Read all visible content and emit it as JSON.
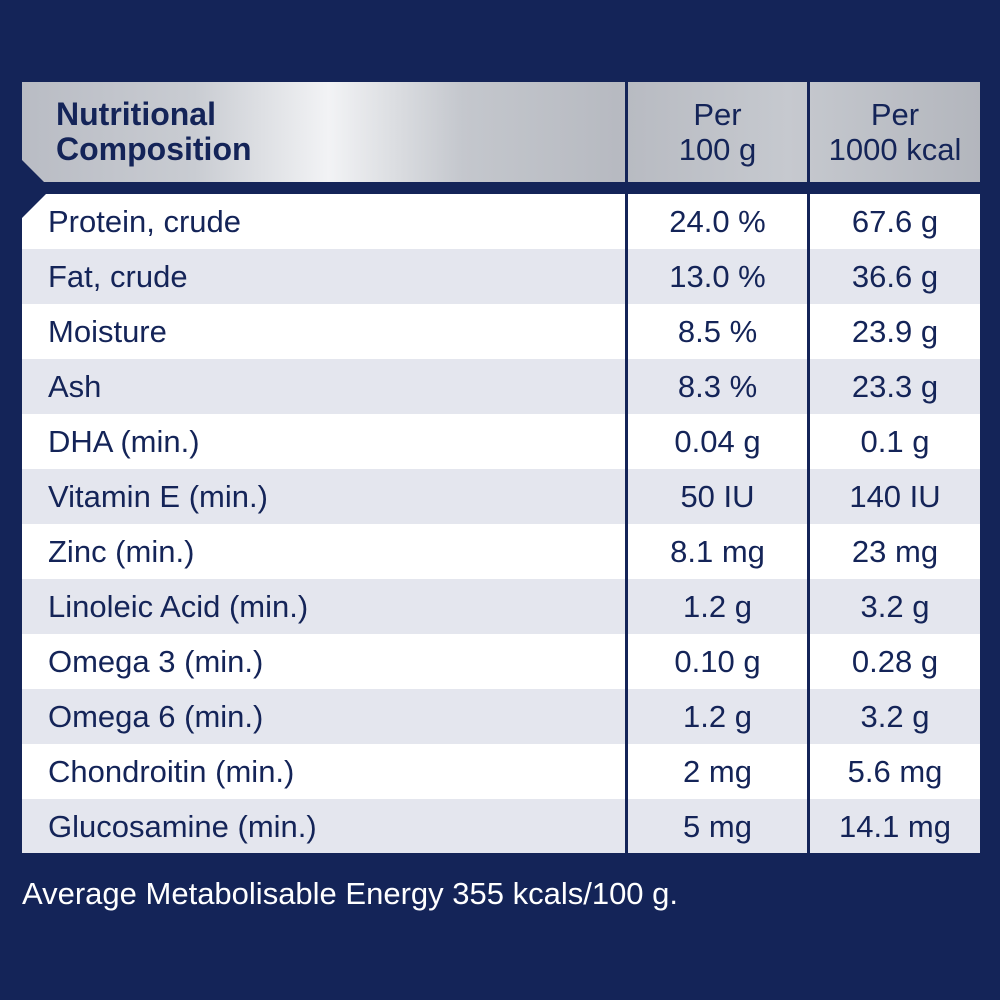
{
  "table": {
    "header": {
      "name_line1": "Nutritional",
      "name_line2": "Composition",
      "col1_line1": "Per",
      "col1_line2": "100 g",
      "col2_line1": "Per",
      "col2_line2": "1000 kcal"
    },
    "rows": [
      {
        "name": "Protein, crude",
        "per100g": "24.0 %",
        "per1000kcal": "67.6 g"
      },
      {
        "name": "Fat, crude",
        "per100g": "13.0 %",
        "per1000kcal": "36.6 g"
      },
      {
        "name": "Moisture",
        "per100g": "8.5 %",
        "per1000kcal": "23.9 g"
      },
      {
        "name": "Ash",
        "per100g": "8.3 %",
        "per1000kcal": "23.3 g"
      },
      {
        "name": "DHA (min.)",
        "per100g": "0.04 g",
        "per1000kcal": "0.1 g"
      },
      {
        "name": "Vitamin E (min.)",
        "per100g": "50 IU",
        "per1000kcal": "140 IU"
      },
      {
        "name": "Zinc (min.)",
        "per100g": "8.1 mg",
        "per1000kcal": "23 mg"
      },
      {
        "name": "Linoleic Acid (min.)",
        "per100g": "1.2 g",
        "per1000kcal": "3.2 g"
      },
      {
        "name": "Omega 3 (min.)",
        "per100g": "0.10 g",
        "per1000kcal": "0.28 g"
      },
      {
        "name": "Omega 6 (min.)",
        "per100g": "1.2 g",
        "per1000kcal": "3.2 g"
      },
      {
        "name": "Chondroitin (min.)",
        "per100g": "2 mg",
        "per1000kcal": "5.6 mg"
      },
      {
        "name": "Glucosamine (min.)",
        "per100g": "5 mg",
        "per1000kcal": "14.1 mg"
      }
    ]
  },
  "footer": {
    "text": "Average Metabolisable Energy 355 kcals/100 g."
  },
  "colors": {
    "background": "#142458",
    "text": "#142458",
    "row_alt": "#e4e6ee",
    "header_silver": "#c4c7cd"
  }
}
